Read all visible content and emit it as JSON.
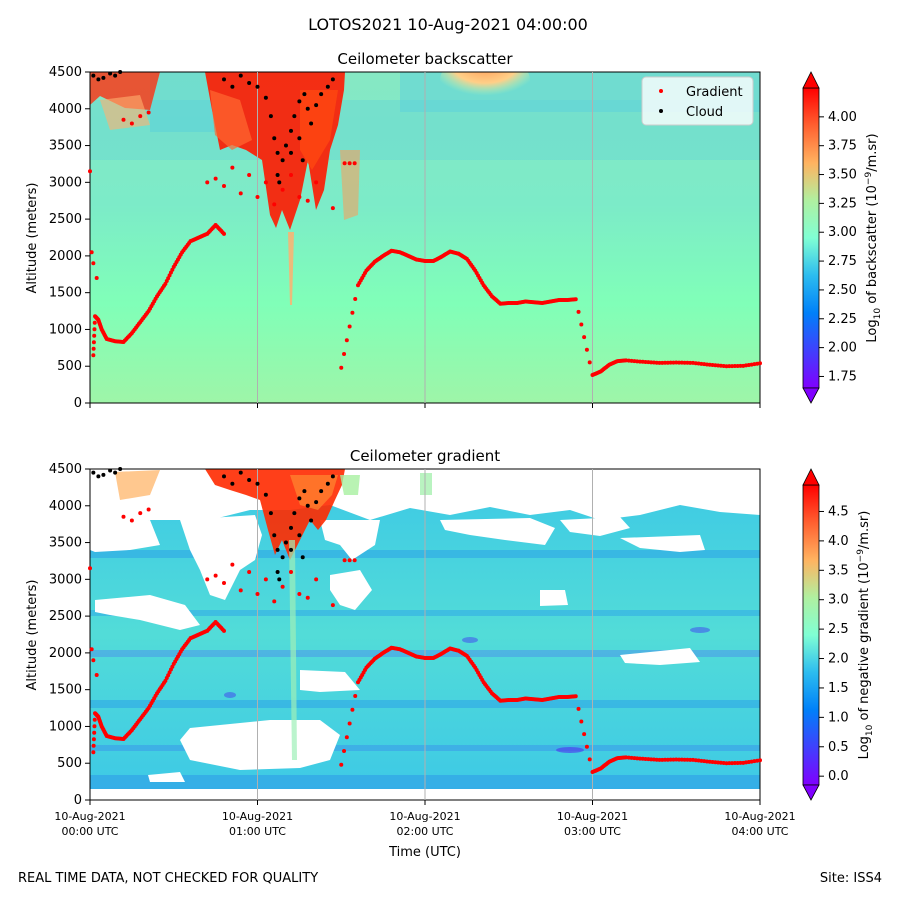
{
  "figure": {
    "suptitle": "LOTOS2021 10-Aug-2021 04:00:00",
    "footer_left": "REAL TIME DATA, NOT CHECKED FOR QUALITY",
    "footer_right": "Site: ISS4"
  },
  "chart_data": [
    {
      "type": "heatmap",
      "title": "Ceilometer backscatter",
      "xlabel": "",
      "ylabel": "Altitude (meters)",
      "ylim": [
        0,
        4500
      ],
      "yticks": [
        "0",
        "500",
        "1000",
        "1500",
        "2000",
        "2500",
        "3000",
        "3500",
        "4000",
        "4500"
      ],
      "xlim_hours_utc": [
        0,
        4
      ],
      "grid_x": true,
      "legend": {
        "position": "top-right",
        "entries": [
          {
            "label": "Gradient",
            "color": "#ff0000"
          },
          {
            "label": "Cloud",
            "color": "#000000"
          }
        ]
      },
      "colorbar": {
        "label_prefix": "Log",
        "label_sub": "10",
        "label_mid": " of backscatter (10",
        "label_sup": "−9",
        "label_suffix": "/m.sr)",
        "range": [
          1.65,
          4.25
        ],
        "ticks": [
          "1.75",
          "2.00",
          "2.25",
          "2.50",
          "2.75",
          "3.00",
          "3.25",
          "3.50",
          "3.75",
          "4.00"
        ],
        "extend": "both",
        "colormap": "rainbow"
      }
    },
    {
      "type": "heatmap",
      "title": "Ceilometer gradient",
      "xlabel": "Time (UTC)",
      "ylabel": "Altitude (meters)",
      "ylim": [
        0,
        4500
      ],
      "yticks": [
        "0",
        "500",
        "1000",
        "1500",
        "2000",
        "2500",
        "3000",
        "3500",
        "4000",
        "4500"
      ],
      "xticks": [
        {
          "line1": "10-Aug-2021",
          "line2": "00:00 UTC"
        },
        {
          "line1": "10-Aug-2021",
          "line2": "01:00 UTC"
        },
        {
          "line1": "10-Aug-2021",
          "line2": "02:00 UTC"
        },
        {
          "line1": "10-Aug-2021",
          "line2": "03:00 UTC"
        },
        {
          "line1": "10-Aug-2021",
          "line2": "04:00 UTC"
        }
      ],
      "xlim_hours_utc": [
        0,
        4
      ],
      "grid_x": true,
      "colorbar": {
        "label_prefix": "Log",
        "label_sub": "10",
        "label_mid": " of negative gradient (10",
        "label_sup": "−9",
        "label_suffix": "/m.sr)",
        "range": [
          -0.15,
          4.95
        ],
        "ticks": [
          "0.0",
          "0.5",
          "1.0",
          "1.5",
          "2.0",
          "2.5",
          "3.0",
          "3.5",
          "4.0",
          "4.5"
        ],
        "extend": "both",
        "colormap": "rainbow"
      }
    }
  ],
  "series": {
    "gradient_height_points": [
      [
        0.02,
        650
      ],
      [
        0.03,
        1180
      ],
      [
        0.05,
        1130
      ],
      [
        0.07,
        1000
      ],
      [
        0.1,
        870
      ],
      [
        0.15,
        840
      ],
      [
        0.2,
        830
      ],
      [
        0.25,
        950
      ],
      [
        0.3,
        1100
      ],
      [
        0.35,
        1250
      ],
      [
        0.4,
        1450
      ],
      [
        0.45,
        1620
      ],
      [
        0.5,
        1850
      ],
      [
        0.55,
        2050
      ],
      [
        0.6,
        2200
      ],
      [
        0.65,
        2250
      ],
      [
        0.7,
        2300
      ],
      [
        0.75,
        2420
      ],
      [
        0.8,
        2300
      ],
      [
        1.5,
        480
      ],
      [
        1.6,
        1600
      ],
      [
        1.65,
        1800
      ],
      [
        1.7,
        1920
      ],
      [
        1.75,
        2000
      ],
      [
        1.8,
        2070
      ],
      [
        1.85,
        2050
      ],
      [
        1.9,
        2000
      ],
      [
        1.95,
        1950
      ],
      [
        2.0,
        1930
      ],
      [
        2.05,
        1930
      ],
      [
        2.1,
        1990
      ],
      [
        2.15,
        2060
      ],
      [
        2.2,
        2030
      ],
      [
        2.25,
        1960
      ],
      [
        2.3,
        1800
      ],
      [
        2.35,
        1600
      ],
      [
        2.4,
        1450
      ],
      [
        2.45,
        1350
      ],
      [
        2.5,
        1360
      ],
      [
        2.55,
        1360
      ],
      [
        2.6,
        1380
      ],
      [
        2.65,
        1370
      ],
      [
        2.7,
        1360
      ],
      [
        2.75,
        1380
      ],
      [
        2.8,
        1400
      ],
      [
        2.85,
        1400
      ],
      [
        2.9,
        1410
      ],
      [
        3.0,
        380
      ],
      [
        3.05,
        430
      ],
      [
        3.1,
        520
      ],
      [
        3.15,
        570
      ],
      [
        3.2,
        580
      ],
      [
        3.3,
        560
      ],
      [
        3.4,
        545
      ],
      [
        3.5,
        550
      ],
      [
        3.6,
        545
      ],
      [
        3.7,
        520
      ],
      [
        3.8,
        500
      ],
      [
        3.9,
        505
      ],
      [
        4.0,
        540
      ]
    ]
  }
}
